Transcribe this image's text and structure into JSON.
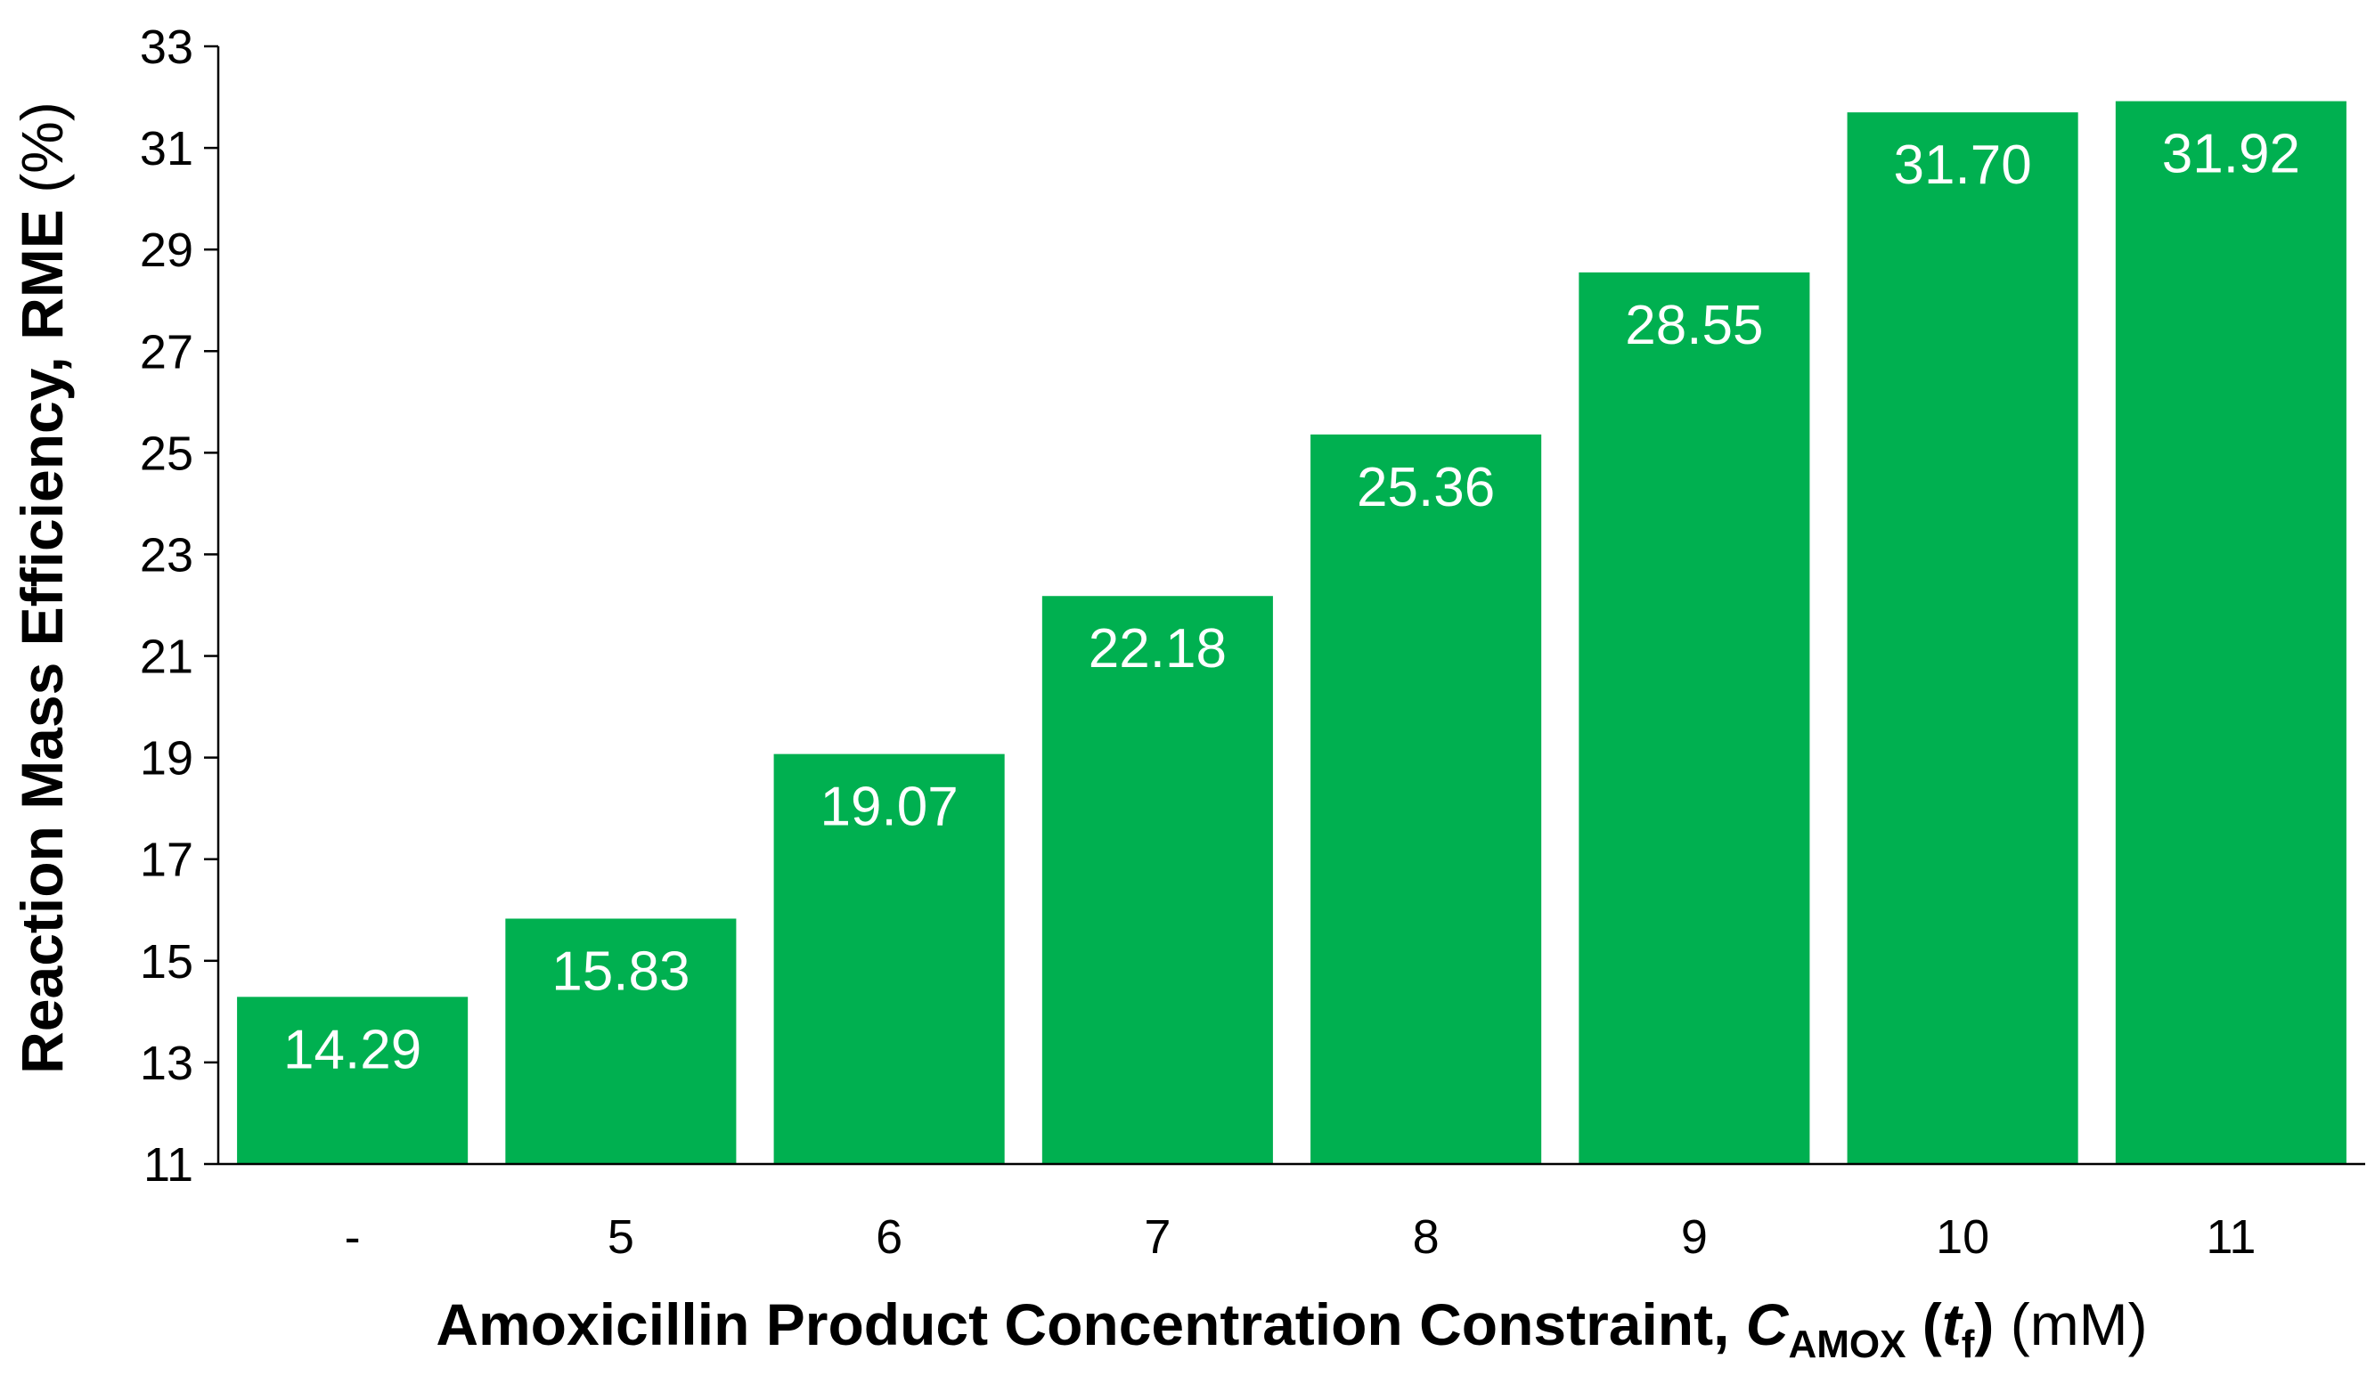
{
  "chart_data": {
    "type": "bar",
    "categories": [
      "-",
      "5",
      "6",
      "7",
      "8",
      "9",
      "10",
      "11"
    ],
    "values": [
      14.29,
      15.83,
      19.07,
      22.18,
      25.36,
      28.55,
      31.7,
      31.92
    ],
    "data_labels": [
      "14.29",
      "15.83",
      "19.07",
      "22.18",
      "25.36",
      "28.55",
      "31.70",
      "31.92"
    ],
    "ylim": [
      11,
      33
    ],
    "yticks": [
      11,
      13,
      15,
      17,
      19,
      21,
      23,
      25,
      27,
      29,
      31,
      33
    ],
    "bar_color": "#00B050",
    "data_label_color": "#FFFFFF",
    "grid": false,
    "legend": "none",
    "ylabel": {
      "main": "Reaction Mass Efficiency, RME",
      "unit": "(%)"
    },
    "xlabel": {
      "main": "Amoxicillin Product Concentration Constraint, ",
      "symbol": "C",
      "symbol_sub": "AMOX",
      "arg_open": " (",
      "arg": "t",
      "arg_sub": "f",
      "arg_close": ")",
      "unit": " (mM)"
    }
  }
}
